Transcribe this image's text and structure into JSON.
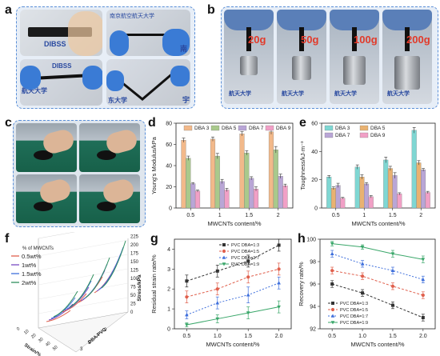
{
  "panels": {
    "a": {
      "label": "a",
      "photo_text": [
        "DIBSS",
        "南京航空航天大学",
        "南",
        "航天大学",
        "DIBSS",
        "东大学",
        "宇"
      ]
    },
    "b": {
      "label": "b",
      "weights": [
        "20g",
        "50g",
        "100g",
        "200g"
      ]
    },
    "c": {
      "label": "c"
    },
    "d": {
      "label": "d"
    },
    "e": {
      "label": "e"
    },
    "f": {
      "label": "f"
    },
    "g": {
      "label": "g"
    },
    "h": {
      "label": "h"
    }
  },
  "colors": {
    "DBA3": "#f2b98a",
    "DBA5": "#a9c98c",
    "DBA7": "#b9a6d6",
    "DBA9": "#f1a0c6",
    "DBA3e": "#7fd7d3",
    "DBA5e": "#e9b271",
    "s13": "#333333",
    "s15": "#e0604d",
    "s17": "#3e6fdc",
    "s19": "#3aa76a",
    "f05": "#e0604d",
    "f1": "#7a4cc2",
    "f15": "#3e6fdc",
    "f2": "#2f8f5e"
  },
  "chart_data": [
    {
      "id": "d",
      "type": "bar",
      "categories": [
        "0.5",
        "1",
        "1.5",
        "2"
      ],
      "xlabel": "MWCNTs content/%",
      "ylabel": "Young's Modulus/kPa",
      "ylim": [
        0,
        80
      ],
      "yticks": [
        "0",
        "20",
        "40",
        "60",
        "80"
      ],
      "series": [
        {
          "name": "DBA 3",
          "values": [
            64,
            65,
            70,
            72
          ],
          "err": [
            2,
            2,
            2,
            2.5
          ]
        },
        {
          "name": "DBA 5",
          "values": [
            47,
            49,
            52,
            55
          ],
          "err": [
            2,
            2.5,
            2,
            3
          ]
        },
        {
          "name": "DBA 7",
          "values": [
            23,
            25,
            28,
            30
          ],
          "err": [
            1,
            2,
            1.5,
            2
          ]
        },
        {
          "name": "DBA 9",
          "values": [
            16,
            17,
            18,
            21
          ],
          "err": [
            1,
            1.5,
            2,
            1.5
          ]
        }
      ]
    },
    {
      "id": "e",
      "type": "bar",
      "categories": [
        "0.5",
        "1",
        "1.5",
        "2"
      ],
      "xlabel": "MWCNTs content/%",
      "ylabel": "Toughness/kJ·m⁻³",
      "ylim": [
        0,
        60
      ],
      "yticks": [
        "0",
        "20",
        "40",
        "60"
      ],
      "series": [
        {
          "name": "DBA 3",
          "values": [
            22,
            29,
            34,
            55
          ],
          "err": [
            1,
            1.5,
            2,
            2
          ]
        },
        {
          "name": "DBA 5",
          "values": [
            14,
            22,
            28,
            32
          ],
          "err": [
            1,
            1.5,
            1.5,
            1.5
          ]
        },
        {
          "name": "DBA 7",
          "values": [
            16,
            17,
            23,
            27
          ],
          "err": [
            1.5,
            1,
            2,
            1
          ]
        },
        {
          "name": "DBA 9",
          "values": [
            7,
            8,
            10,
            11
          ],
          "err": [
            0.5,
            0.8,
            0.8,
            0.8
          ]
        }
      ]
    },
    {
      "id": "f",
      "type": "line",
      "title": "% of MWCNTs",
      "zlabel": "Stress/kPa",
      "xlabel": "Strain/%",
      "ylabel": "DBA-PVC",
      "zticks": [
        "0",
        "25",
        "50",
        "75",
        "100",
        "125",
        "150",
        "175",
        "200",
        "225",
        "250"
      ],
      "legend": [
        "0.5wt%",
        "1wt%",
        "1.5wt%",
        "2wt%"
      ],
      "xticks": [
        "0",
        "10",
        "20",
        "30",
        "40",
        "50"
      ],
      "yticks": [
        "3",
        "5",
        "7",
        "9"
      ]
    },
    {
      "id": "g",
      "type": "line",
      "x": [
        0.5,
        1.0,
        1.5,
        2.0
      ],
      "xlabel": "MWCNTs content/%",
      "ylabel": "Residual strain rate/%",
      "ylim": [
        0,
        4.5
      ],
      "xticks": [
        "0.5",
        "1.0",
        "1.5",
        "2.0"
      ],
      "yticks": [
        "0",
        "1",
        "2",
        "3",
        "4"
      ],
      "series": [
        {
          "name": "PVC DBA=1:3",
          "values": [
            2.4,
            2.9,
            3.4,
            4.2
          ],
          "err": [
            0.3,
            0.3,
            0.3,
            0.3
          ]
        },
        {
          "name": "PVC DBA=1:5",
          "values": [
            1.6,
            2.0,
            2.6,
            3.0
          ],
          "err": [
            0.3,
            0.3,
            0.3,
            0.3
          ]
        },
        {
          "name": "PVC DBA=1:7",
          "values": [
            0.7,
            1.3,
            1.7,
            2.3
          ],
          "err": [
            0.2,
            0.3,
            0.4,
            0.3
          ]
        },
        {
          "name": "PVC DBA=1:9",
          "values": [
            0.2,
            0.5,
            0.8,
            1.1
          ],
          "err": [
            0.1,
            0.2,
            0.3,
            0.3
          ]
        }
      ]
    },
    {
      "id": "h",
      "type": "line",
      "x": [
        0.5,
        1.0,
        1.5,
        2.0
      ],
      "xlabel": "MWCNTs content/%",
      "ylabel": "Recovery rate/%",
      "ylim": [
        92,
        100
      ],
      "xticks": [
        "0.5",
        "1.0",
        "1.5",
        "2.0"
      ],
      "yticks": [
        "92",
        "94",
        "96",
        "98",
        "100"
      ],
      "series": [
        {
          "name": "PVC DBA=1:3",
          "values": [
            96.0,
            95.2,
            94.1,
            93.0
          ],
          "err": [
            0.3,
            0.3,
            0.3,
            0.3
          ]
        },
        {
          "name": "PVC DBA=1:5",
          "values": [
            97.2,
            96.7,
            95.8,
            95.0
          ],
          "err": [
            0.3,
            0.3,
            0.3,
            0.3
          ]
        },
        {
          "name": "PVC DBA=1:7",
          "values": [
            98.7,
            97.8,
            97.2,
            96.4
          ],
          "err": [
            0.3,
            0.3,
            0.3,
            0.3
          ]
        },
        {
          "name": "PVC DBA=1:9",
          "values": [
            99.6,
            99.3,
            98.7,
            98.2
          ],
          "err": [
            0.2,
            0.2,
            0.3,
            0.3
          ]
        }
      ]
    }
  ]
}
